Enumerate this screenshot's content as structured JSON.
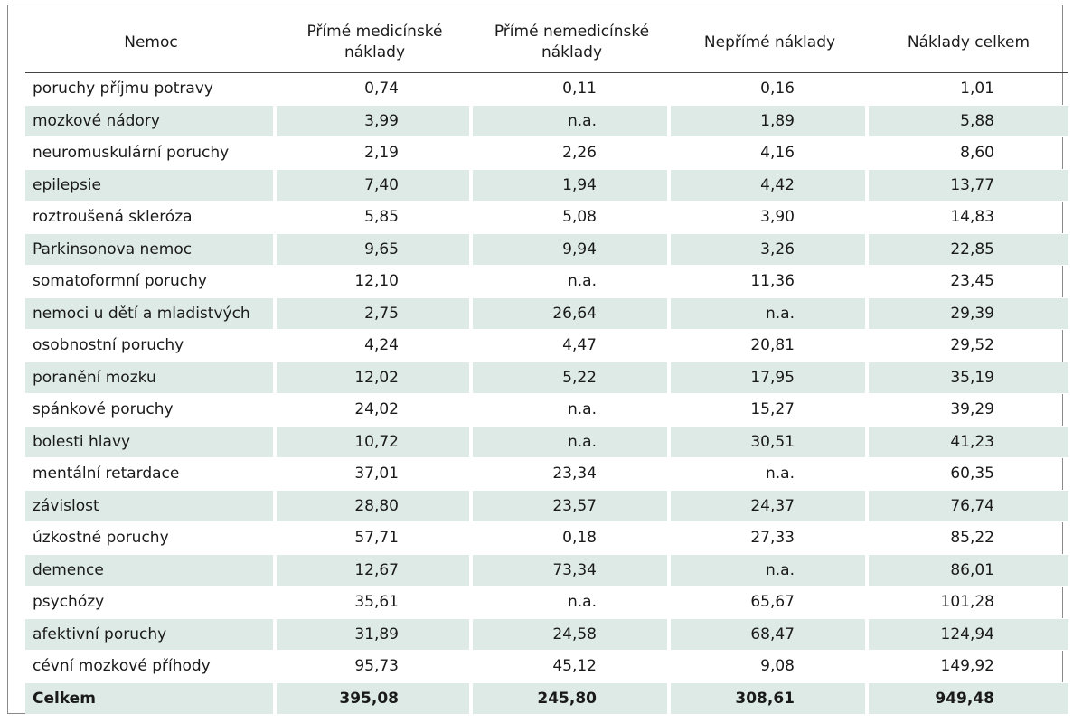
{
  "table": {
    "headers": {
      "disease": "Nemoc",
      "direct_medical": "Přímé medicínské náklady",
      "direct_nonmedical": "Přímé nemedicínské náklady",
      "indirect": "Nepřímé náklady",
      "total": "Náklady celkem"
    },
    "rows": [
      {
        "name": "poruchy příjmu potravy",
        "dm": "0,74",
        "dn": "0,11",
        "ind": "0,16",
        "tot": "1,01"
      },
      {
        "name": "mozkové nádory",
        "dm": "3,99",
        "dn": "n.a.",
        "ind": "1,89",
        "tot": "5,88"
      },
      {
        "name": "neuromuskulární poruchy",
        "dm": "2,19",
        "dn": "2,26",
        "ind": "4,16",
        "tot": "8,60"
      },
      {
        "name": "epilepsie",
        "dm": "7,40",
        "dn": "1,94",
        "ind": "4,42",
        "tot": "13,77"
      },
      {
        "name": "roztroušená skleróza",
        "dm": "5,85",
        "dn": "5,08",
        "ind": "3,90",
        "tot": "14,83"
      },
      {
        "name": "Parkinsonova nemoc",
        "dm": "9,65",
        "dn": "9,94",
        "ind": "3,26",
        "tot": "22,85"
      },
      {
        "name": "somatoformní poruchy",
        "dm": "12,10",
        "dn": "n.a.",
        "ind": "11,36",
        "tot": "23,45"
      },
      {
        "name": "nemoci u dětí a mladistvých",
        "dm": "2,75",
        "dn": "26,64",
        "ind": "n.a.",
        "tot": "29,39"
      },
      {
        "name": "osobnostní poruchy",
        "dm": "4,24",
        "dn": "4,47",
        "ind": "20,81",
        "tot": "29,52"
      },
      {
        "name": "poranění mozku",
        "dm": "12,02",
        "dn": "5,22",
        "ind": "17,95",
        "tot": "35,19"
      },
      {
        "name": "spánkové poruchy",
        "dm": "24,02",
        "dn": "n.a.",
        "ind": "15,27",
        "tot": "39,29"
      },
      {
        "name": "bolesti hlavy",
        "dm": "10,72",
        "dn": "n.a.",
        "ind": "30,51",
        "tot": "41,23"
      },
      {
        "name": "mentální retardace",
        "dm": "37,01",
        "dn": "23,34",
        "ind": "n.a.",
        "tot": "60,35"
      },
      {
        "name": "závislost",
        "dm": "28,80",
        "dn": "23,57",
        "ind": "24,37",
        "tot": "76,74"
      },
      {
        "name": "úzkostné poruchy",
        "dm": "57,71",
        "dn": "0,18",
        "ind": "27,33",
        "tot": "85,22"
      },
      {
        "name": "demence",
        "dm": "12,67",
        "dn": "73,34",
        "ind": "n.a.",
        "tot": "86,01"
      },
      {
        "name": "psychózy",
        "dm": "35,61",
        "dn": "n.a.",
        "ind": "65,67",
        "tot": "101,28"
      },
      {
        "name": "afektivní poruchy",
        "dm": "31,89",
        "dn": "24,58",
        "ind": "68,47",
        "tot": "124,94"
      },
      {
        "name": "cévní mozkové příhody",
        "dm": "95,73",
        "dn": "45,12",
        "ind": "9,08",
        "tot": "149,92"
      }
    ],
    "total": {
      "name": "Celkem",
      "dm": "395,08",
      "dn": "245,80",
      "ind": "308,61",
      "tot": "949,48"
    }
  },
  "colors": {
    "row_shade": "#deeae6",
    "border": "#8a8a8a"
  }
}
